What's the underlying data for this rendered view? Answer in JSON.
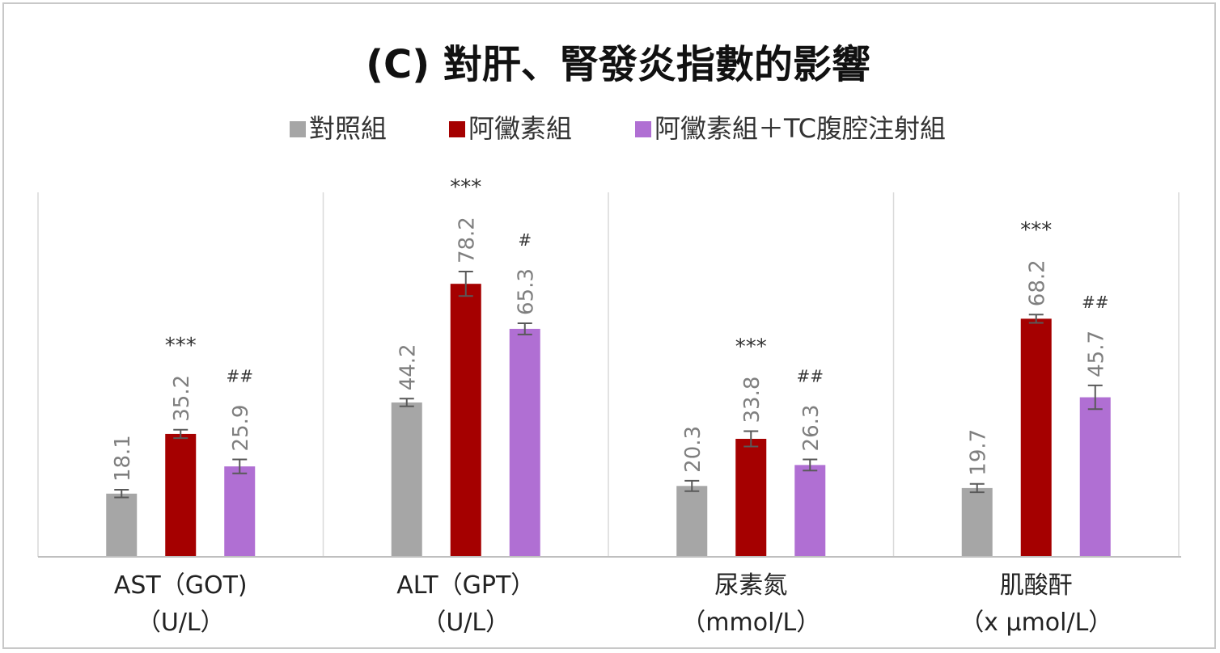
{
  "chart_data": {
    "type": "bar",
    "title": "(C) 對肝、腎發炎指數的影響",
    "legend_position": "top",
    "grid": false,
    "categories": [
      {
        "name": "AST（GOT)",
        "unit": "（U/L）"
      },
      {
        "name": "ALT（GPT）",
        "unit": "（U/L）"
      },
      {
        "name": "尿素氮",
        "unit": "（mmol/L）"
      },
      {
        "name": "肌酸酐",
        "unit": "（x μmol/L）"
      }
    ],
    "series": [
      {
        "name": "對照組",
        "color": "#a6a6a6",
        "values": [
          18.1,
          44.2,
          20.3,
          19.7
        ],
        "labels": [
          "18.1",
          "44.2",
          "20.3",
          "19.7"
        ],
        "error": [
          1.1,
          1.1,
          1.5,
          1.2
        ],
        "significance": [
          "",
          "",
          "",
          ""
        ]
      },
      {
        "name": "阿黴素組",
        "color": "#a50000",
        "values": [
          35.2,
          78.2,
          33.8,
          68.2
        ],
        "labels": [
          "35.2",
          "78.2",
          "33.8",
          "68.2"
        ],
        "error": [
          1.2,
          3.5,
          2.2,
          1.2
        ],
        "significance": [
          "***",
          "***",
          "***",
          "***"
        ]
      },
      {
        "name": "阿黴素組＋TC腹腔注射組",
        "color": "#b06fd3",
        "values": [
          25.9,
          65.3,
          26.3,
          45.7
        ],
        "labels": [
          "25.9",
          "65.3",
          "26.3",
          "45.7"
        ],
        "error": [
          2.0,
          1.6,
          1.6,
          3.4
        ],
        "significance": [
          "##",
          "#",
          "##",
          "##"
        ]
      }
    ],
    "ylim": [
      0,
      100
    ]
  }
}
